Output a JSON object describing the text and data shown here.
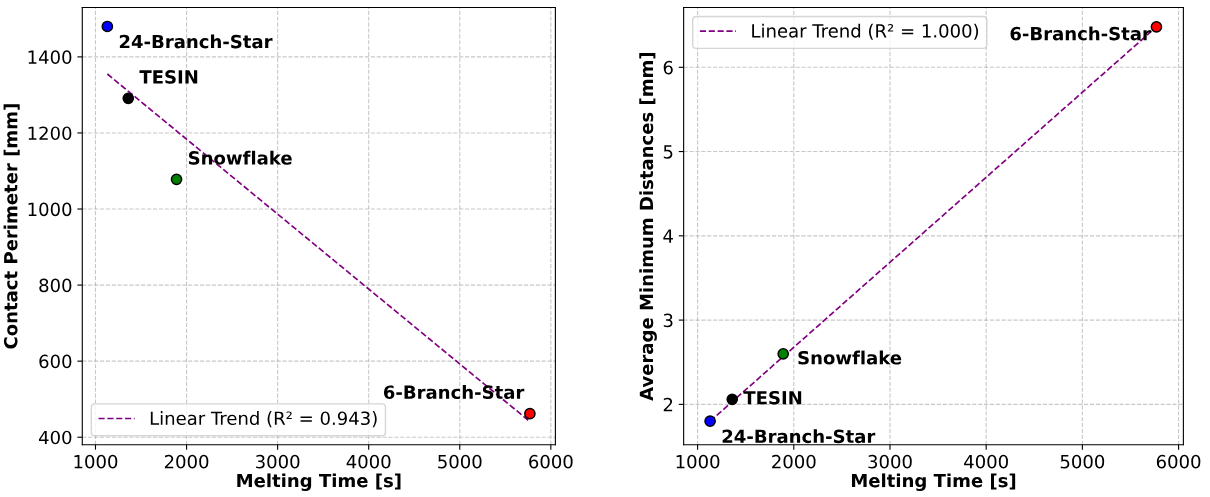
{
  "chart_data": [
    {
      "type": "scatter",
      "xlabel": "Melting Time [s]",
      "ylabel": "Contact Perimeter [mm]",
      "xlim": [
        855,
        6050
      ],
      "ylim": [
        380,
        1530
      ],
      "xticks": [
        1000,
        2000,
        3000,
        4000,
        5000,
        6000
      ],
      "yticks": [
        400,
        600,
        800,
        1000,
        1200,
        1400
      ],
      "grid": true,
      "legend": "bottom left",
      "series": [
        {
          "marker": "circle",
          "x": [
            1130,
            1360,
            1890,
            5770
          ],
          "values": [
            1480,
            1291,
            1078,
            462
          ],
          "colors": [
            "#0000ff",
            "#000000",
            "#008000",
            "#ff0000"
          ]
        },
        {
          "type": "line",
          "name": "Linear Trend (R² = 0.943)",
          "color": "#800080",
          "line_style": "dashed",
          "x": [
            1130,
            5770
          ],
          "values": [
            1355,
            441
          ]
        }
      ],
      "annotations": [
        {
          "text": "24-Branch-Star",
          "x": 1130,
          "y": 1480
        },
        {
          "text": "TESIN",
          "x": 1360,
          "y": 1291
        },
        {
          "text": "Snowflake",
          "x": 1890,
          "y": 1078
        },
        {
          "text": "6-Branch-Star",
          "x": 5770,
          "y": 462
        }
      ]
    },
    {
      "type": "scatter",
      "xlabel": "Melting Time [s]",
      "ylabel": "Average Minimum Distances [mm]",
      "xlim": [
        855,
        6050
      ],
      "ylim": [
        1.52,
        6.71
      ],
      "xticks": [
        1000,
        2000,
        3000,
        4000,
        5000,
        6000
      ],
      "yticks": [
        2,
        3,
        4,
        5,
        6
      ],
      "grid": true,
      "legend": "top left",
      "series": [
        {
          "marker": "circle",
          "x": [
            1130,
            1360,
            1890,
            5770
          ],
          "values": [
            1.8,
            2.06,
            2.6,
            6.48
          ],
          "colors": [
            "#0000ff",
            "#000000",
            "#008000",
            "#ff0000"
          ]
        },
        {
          "type": "line",
          "name": "Linear Trend (R² = 1.000)",
          "color": "#800080",
          "line_style": "dashed",
          "x": [
            1130,
            5770
          ],
          "values": [
            1.8,
            6.48
          ]
        }
      ],
      "annotations": [
        {
          "text": "24-Branch-Star",
          "x": 1130,
          "y": 1.8
        },
        {
          "text": "TESIN",
          "x": 1360,
          "y": 2.06
        },
        {
          "text": "Snowflake",
          "x": 1890,
          "y": 2.6
        },
        {
          "text": "6-Branch-Star",
          "x": 5770,
          "y": 6.48
        }
      ]
    }
  ]
}
